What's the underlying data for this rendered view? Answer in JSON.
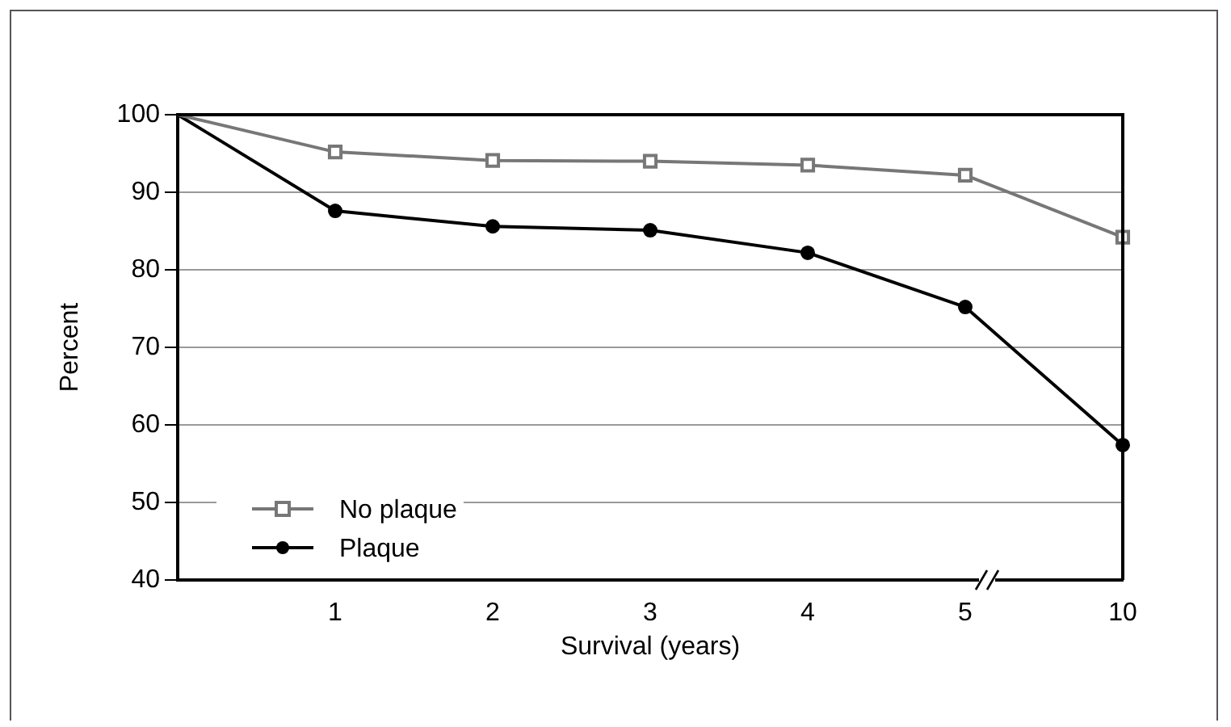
{
  "chart_data": {
    "type": "line",
    "xlabel": "Survival (years)",
    "ylabel": "Percent",
    "categories": [
      null,
      "1",
      "2",
      "3",
      "4",
      "5",
      "10"
    ],
    "series": [
      {
        "name": "No plaque",
        "color": "#777777",
        "marker": "square",
        "values": [
          100,
          95.2,
          94.1,
          94.0,
          93.5,
          92.2,
          84.2
        ]
      },
      {
        "name": "Plaque",
        "color": "#000000",
        "marker": "circle",
        "values": [
          100,
          87.6,
          85.6,
          85.1,
          82.2,
          75.2,
          57.4
        ]
      }
    ],
    "ylim": [
      40,
      100
    ],
    "yticks": [
      40,
      50,
      60,
      70,
      80,
      90,
      100
    ],
    "grid": "y",
    "legend": "bottom left"
  }
}
